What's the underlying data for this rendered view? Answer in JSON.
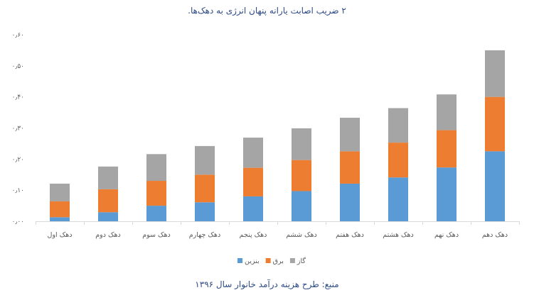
{
  "chart_data": {
    "type": "bar",
    "stacked": true,
    "title": "۲ ضریب اصابت یارانه پنهان انرژی به دهک‌ها.",
    "source": "منبع: طرح هزینه درآمد خانوار سال ۱۳۹۶",
    "categories": [
      "دهک اول",
      "دهک دوم",
      "دهک سوم",
      "دهک چهارم",
      "دهک پنجم",
      "دهک ششم",
      "دهک هفتم",
      "دهک هشتم",
      "دهک نهم",
      "دهک دهم"
    ],
    "series": [
      {
        "name": "بنزین",
        "color": "#5b9bd5",
        "values": [
          0.013,
          0.029,
          0.05,
          0.061,
          0.08,
          0.097,
          0.121,
          0.141,
          0.173,
          0.225
        ]
      },
      {
        "name": "برق",
        "color": "#ed7d31",
        "values": [
          0.051,
          0.074,
          0.08,
          0.089,
          0.092,
          0.1,
          0.104,
          0.112,
          0.12,
          0.175
        ]
      },
      {
        "name": "گاز",
        "color": "#a5a5a5",
        "values": [
          0.057,
          0.073,
          0.086,
          0.092,
          0.097,
          0.102,
          0.108,
          0.111,
          0.115,
          0.15
        ]
      }
    ],
    "yticks": [
      0,
      0.1,
      0.2,
      0.3,
      0.4,
      0.5,
      0.6
    ],
    "ytick_labels": [
      "۰٫۰۰",
      "۰٫۱۰",
      "۰٫۲۰",
      "۰٫۳۰",
      "۰٫۴۰",
      "۰٫۵۰",
      "۰٫۶۰"
    ],
    "ylim": [
      0,
      0.6
    ],
    "grid": false,
    "legend": "bottom-center",
    "xlabel": "",
    "ylabel": ""
  }
}
